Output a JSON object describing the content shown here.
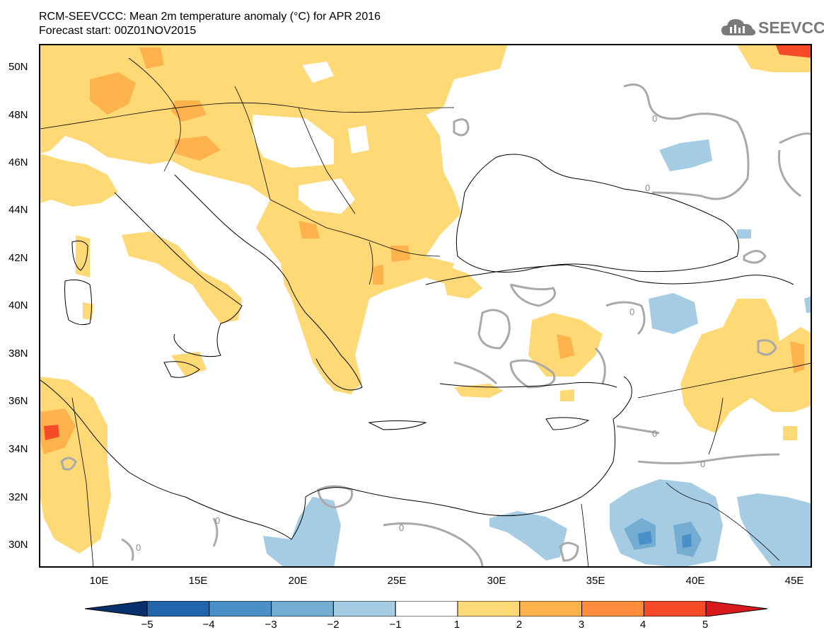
{
  "title": {
    "line1": "RCM-SEEVCCC: Mean 2m temperature anomaly (°C) for APR 2016",
    "line2": "Forecast start: 00Z01NOV2015"
  },
  "logo": {
    "text": "SEEVCCC",
    "icon": "cloud-icon"
  },
  "map": {
    "lat_ticks": [
      "50N",
      "48N",
      "46N",
      "44N",
      "42N",
      "40N",
      "38N",
      "36N",
      "34N",
      "32N",
      "30N"
    ],
    "lon_ticks": [
      "10E",
      "15E",
      "20E",
      "25E",
      "30E",
      "35E",
      "40E",
      "45E"
    ],
    "contour_label": "0"
  },
  "colorbar": {
    "labels": [
      "−5",
      "−4",
      "−3",
      "−2",
      "−1",
      "1",
      "2",
      "3",
      "4",
      "5"
    ],
    "colors": [
      "#08306b",
      "#2166ac",
      "#4a90c8",
      "#74add1",
      "#a6cce4",
      "#ffffff",
      "#fed976",
      "#feb24c",
      "#fd8d3c",
      "#f64b28",
      "#d7191c"
    ]
  }
}
